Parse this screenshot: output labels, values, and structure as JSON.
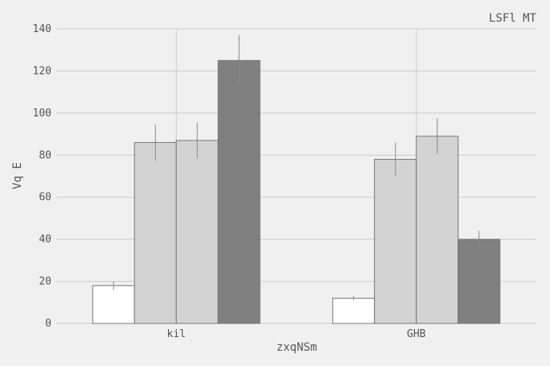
{
  "chart_data": {
    "type": "bar",
    "title": "LSFl MT",
    "xlabel": "zxqNSm",
    "ylabel": "Vq E",
    "categories": [
      "kil",
      "GHB"
    ],
    "ylim": [
      0,
      140
    ],
    "yticks": [
      0,
      20,
      40,
      60,
      80,
      100,
      120,
      140
    ],
    "grid": true,
    "series": [
      {
        "color": "#ffffff",
        "values": [
          18,
          12
        ],
        "errors": [
          2,
          1
        ]
      },
      {
        "color": "#d3d3d3",
        "values": [
          86,
          78
        ],
        "errors": [
          8.5,
          8
        ]
      },
      {
        "color": "#d3d3d3",
        "values": [
          87,
          89
        ],
        "errors": [
          8.5,
          8.5
        ]
      },
      {
        "color": "#808080",
        "values": [
          125,
          40
        ],
        "errors": [
          12,
          4
        ]
      }
    ]
  }
}
